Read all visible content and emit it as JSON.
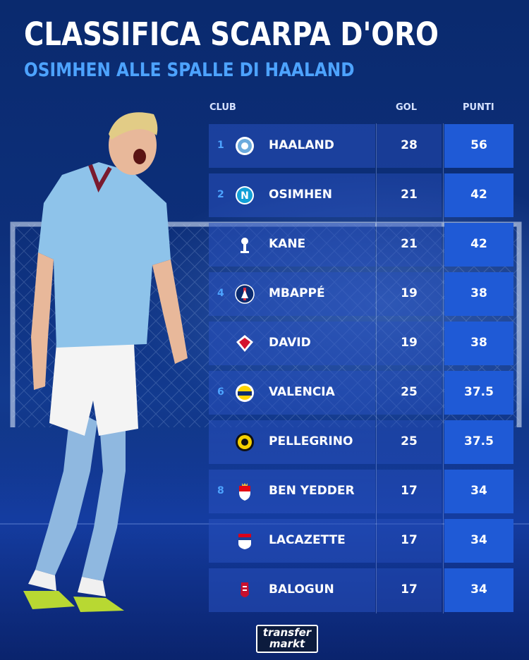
{
  "title": "CLASSIFICA SCARPA D'ORO",
  "subtitle": "OSIMHEN ALLE SPALLE DI HAALAND",
  "headers": {
    "club": "CLUB",
    "gol": "GOL",
    "punti": "PUNTI"
  },
  "colors": {
    "accent": "#4da3ff",
    "points_cell": "#1f5ad6",
    "background": "#0d2f7a"
  },
  "rows": [
    {
      "rank": "1",
      "name": "HAALAND",
      "gol": "28",
      "punti": "56",
      "club_icon": "manchester-city-crest-icon"
    },
    {
      "rank": "2",
      "name": "OSIMHEN",
      "gol": "21",
      "punti": "42",
      "club_icon": "napoli-crest-icon"
    },
    {
      "rank": "",
      "name": "KANE",
      "gol": "21",
      "punti": "42",
      "club_icon": "tottenham-crest-icon"
    },
    {
      "rank": "4",
      "name": "MBAPPÉ",
      "gol": "19",
      "punti": "38",
      "club_icon": "psg-crest-icon"
    },
    {
      "rank": "",
      "name": "DAVID",
      "gol": "19",
      "punti": "38",
      "club_icon": "lille-crest-icon"
    },
    {
      "rank": "6",
      "name": "VALENCIA",
      "gol": "25",
      "punti": "37.5",
      "club_icon": "fenerbahce-crest-icon"
    },
    {
      "rank": "",
      "name": "PELLEGRINO",
      "gol": "25",
      "punti": "37.5",
      "club_icon": "bodo-glimt-crest-icon"
    },
    {
      "rank": "8",
      "name": "BEN YEDDER",
      "gol": "17",
      "punti": "34",
      "club_icon": "monaco-crest-icon"
    },
    {
      "rank": "",
      "name": "LACAZETTE",
      "gol": "17",
      "punti": "34",
      "club_icon": "lyon-crest-icon"
    },
    {
      "rank": "",
      "name": "BALOGUN",
      "gol": "17",
      "punti": "34",
      "club_icon": "reims-crest-icon"
    }
  ],
  "brand": {
    "line1": "transfer",
    "line2": "markt"
  }
}
